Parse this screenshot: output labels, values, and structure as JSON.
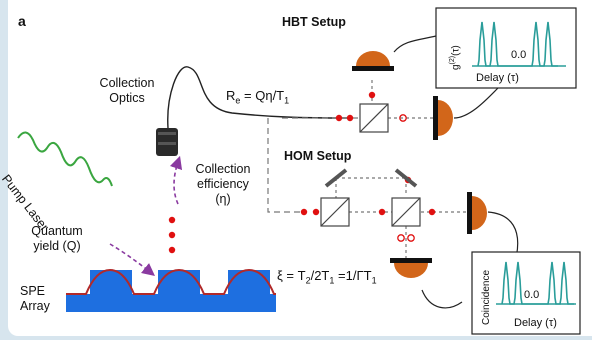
{
  "panel_label": "a",
  "setups": {
    "hbt": "HBT Setup",
    "hom": "HOM Setup"
  },
  "labels": {
    "collection_optics_line1": "Collection",
    "collection_optics_line2": "Optics",
    "collection_efficiency_line1": "Collection",
    "collection_efficiency_line2": "efficiency",
    "collection_efficiency_line3": "(η)",
    "pump_laser": "Pump Laser",
    "quantum_yield_line1": "Quantum",
    "quantum_yield_line2": "yield (Q)",
    "spe_line1": "SPE",
    "spe_line2": "Array"
  },
  "equations": {
    "rate_prefix": "R",
    "rate_sub": "e",
    "rate_suffix": " = Qη/T",
    "rate_sub2": "1",
    "xi_prefix": "ξ = T",
    "xi_sub1": "2",
    "xi_mid": "/2T",
    "xi_sub2": "1",
    "xi_mid2": " =1/ΓT",
    "xi_sub3": "1"
  },
  "insets": {
    "hbt": {
      "ylabel": "g(2)(τ)",
      "ylabel_main": "g",
      "ylabel_sup": "(2)",
      "ylabel_arg": "(τ)",
      "xlabel": "Delay (τ)",
      "center_value": "0.0"
    },
    "hom": {
      "ylabel": "Coincidence",
      "xlabel": "Delay (τ)",
      "center_value": "0.0"
    }
  },
  "colors": {
    "background": "#d7e5ee",
    "pump": "#3aa640",
    "substrate": "#1e6fe0",
    "surface_line": "#b22a2a",
    "photon": "#e01010",
    "detector": "#d2661a",
    "trace": "#2a9d9a",
    "arrow": "#8a3aa0"
  }
}
